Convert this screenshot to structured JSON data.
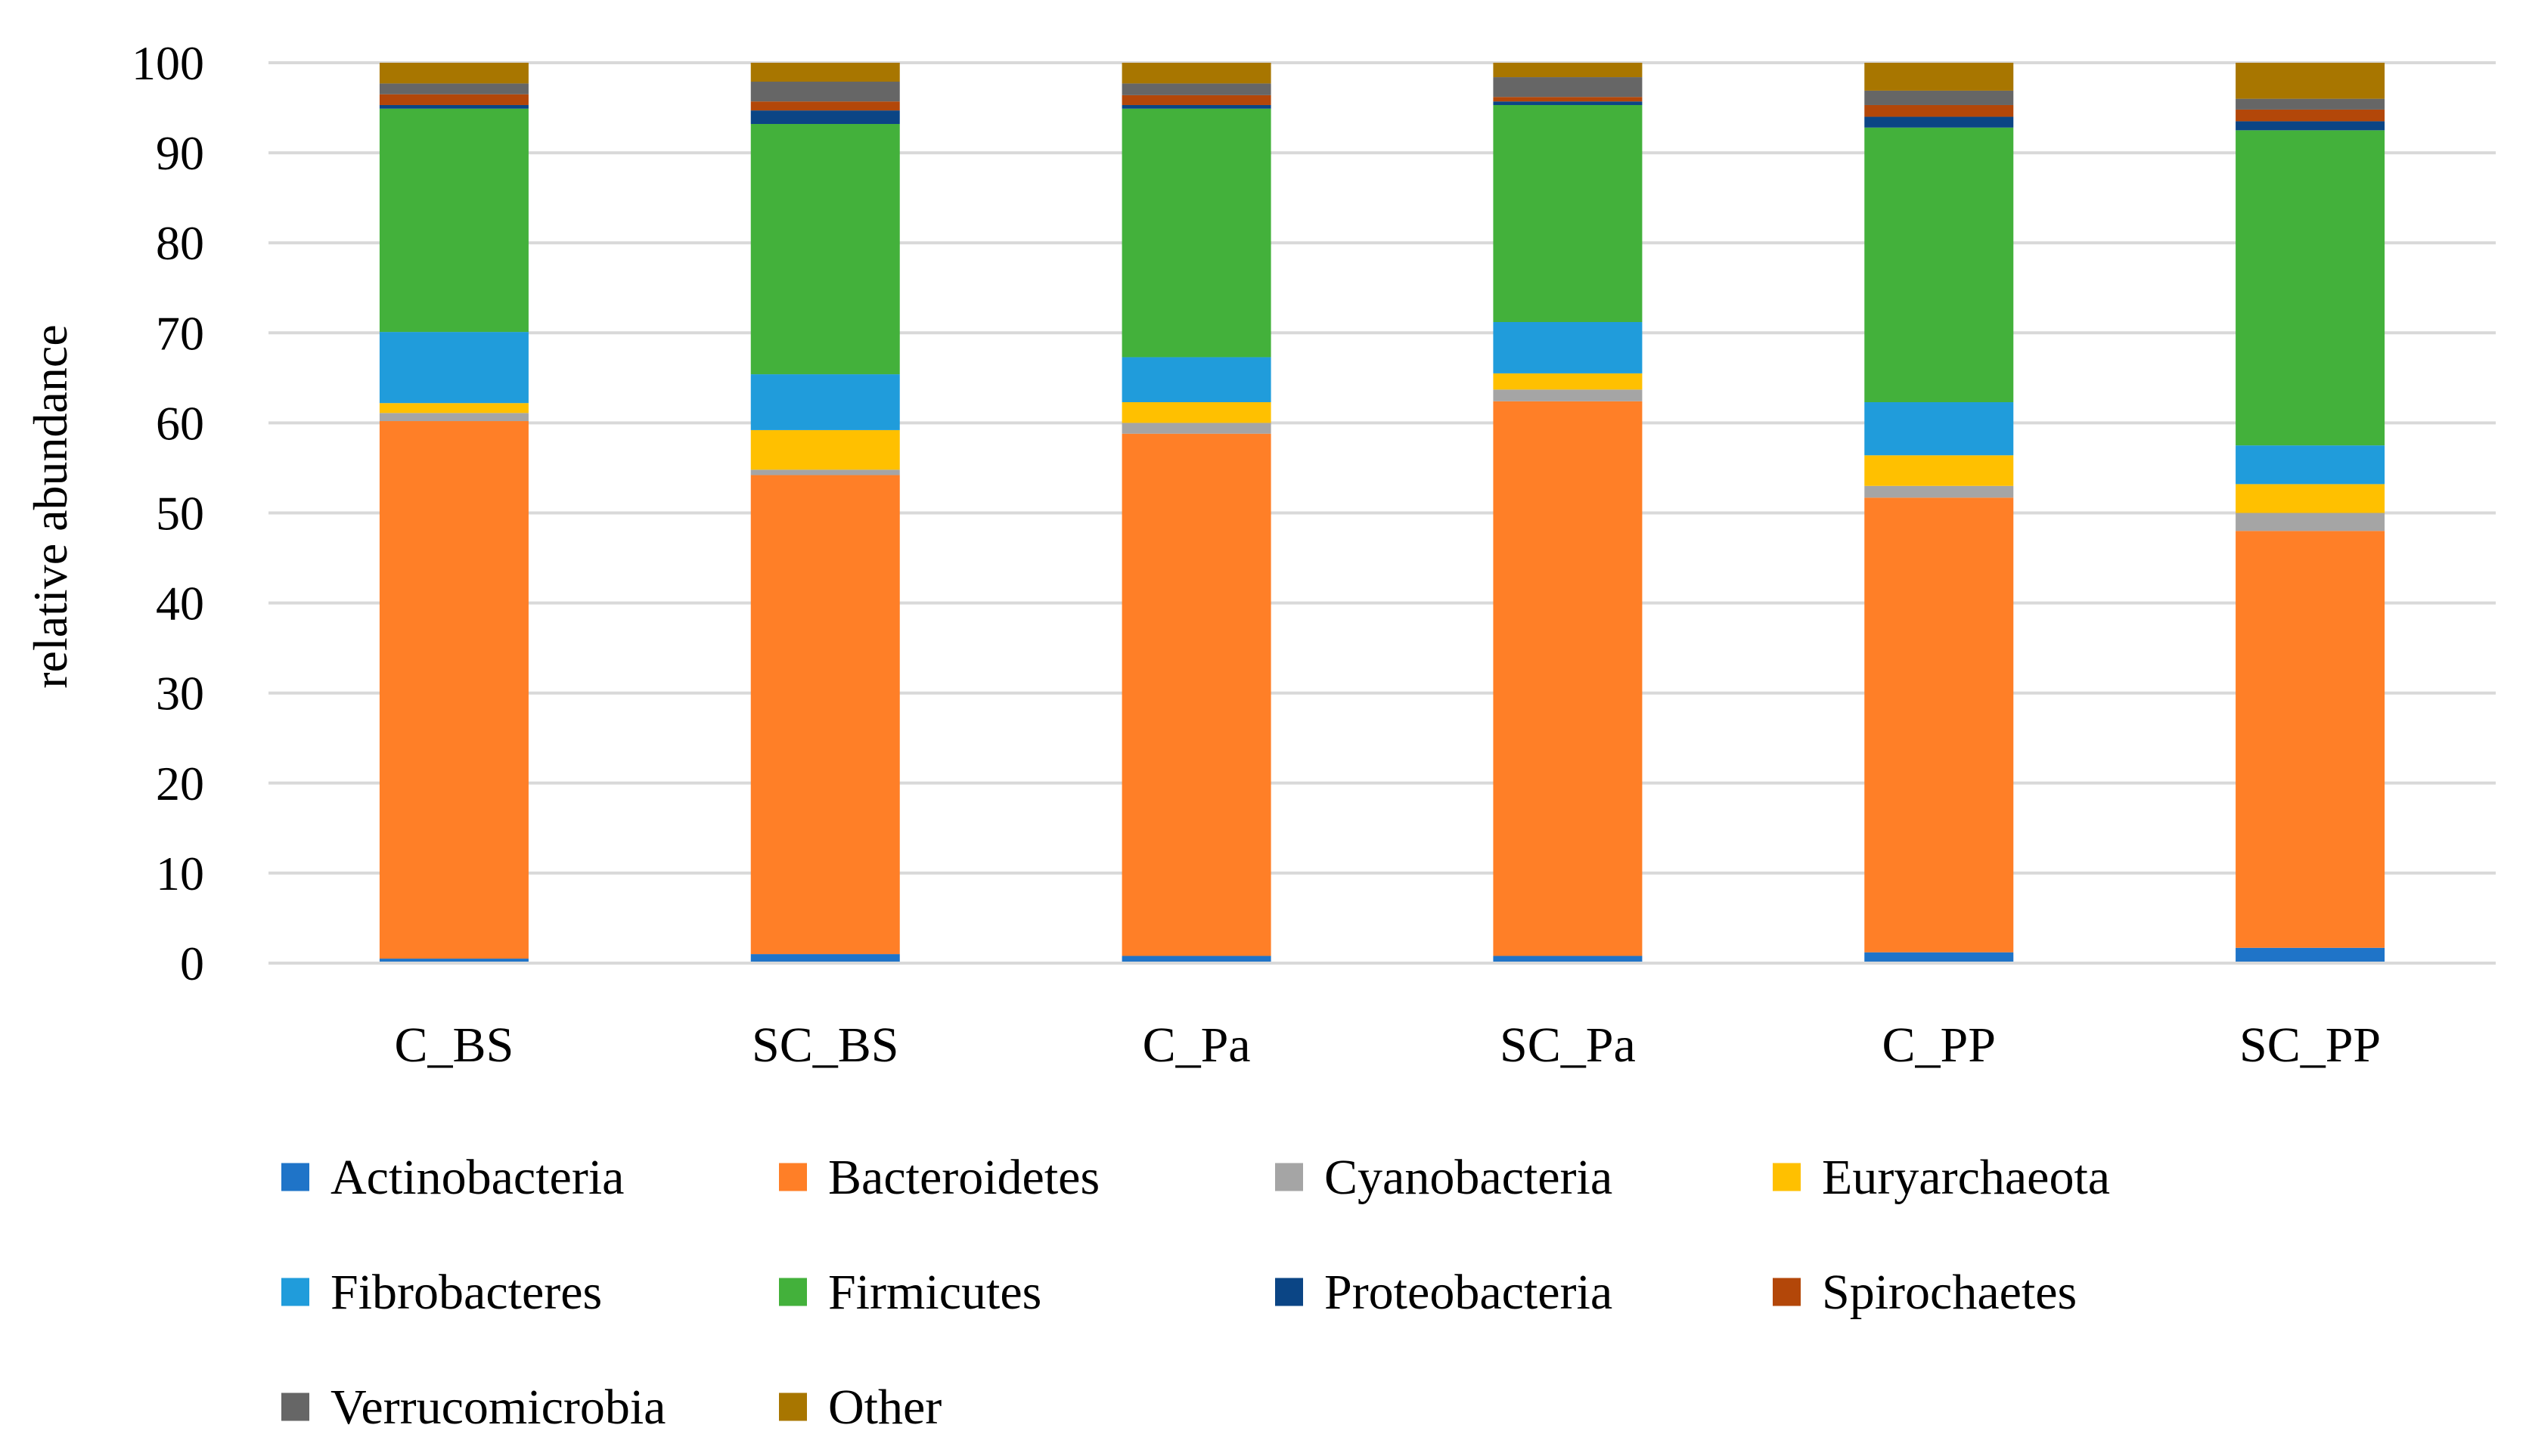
{
  "chart_data": {
    "type": "bar",
    "stacked": true,
    "title": "",
    "xlabel": "",
    "ylabel": "relative abundance",
    "ylim": [
      0,
      100
    ],
    "yticks": [
      0,
      10,
      20,
      30,
      40,
      50,
      60,
      70,
      80,
      90,
      100
    ],
    "grid": true,
    "legend_position": "bottom",
    "categories": [
      "C_BS",
      "SC_BS",
      "C_Pa",
      "SC_Pa",
      "C_PP",
      "SC_PP"
    ],
    "series": [
      {
        "name": "Actinobacteria",
        "color": "#1F74C8",
        "values": [
          0.5,
          1.0,
          0.8,
          0.8,
          1.2,
          1.7
        ]
      },
      {
        "name": "Bacteroidetes",
        "color": "#FF7F27",
        "values": [
          59.7,
          53.2,
          58.0,
          61.6,
          50.5,
          46.3
        ]
      },
      {
        "name": "Cyanobacteria",
        "color": "#A5A5A5",
        "values": [
          0.9,
          0.6,
          1.2,
          1.3,
          1.3,
          2.0
        ]
      },
      {
        "name": "Euryarchaeota",
        "color": "#FFC000",
        "values": [
          1.1,
          4.4,
          2.3,
          1.8,
          3.4,
          3.2
        ]
      },
      {
        "name": "Fibrobacteres",
        "color": "#209CDB",
        "values": [
          7.9,
          6.2,
          5.0,
          5.7,
          5.9,
          4.3
        ]
      },
      {
        "name": "Firmicutes",
        "color": "#43B13B",
        "values": [
          24.8,
          27.8,
          27.6,
          24.1,
          30.5,
          35.0
        ]
      },
      {
        "name": "Proteobacteria",
        "color": "#0B4585",
        "values": [
          0.4,
          1.5,
          0.4,
          0.4,
          1.2,
          1.0
        ]
      },
      {
        "name": "Spirochaetes",
        "color": "#B34709",
        "values": [
          1.2,
          1.0,
          1.1,
          0.5,
          1.3,
          1.3
        ]
      },
      {
        "name": "Verrucomicrobia",
        "color": "#666666",
        "values": [
          1.2,
          2.2,
          1.3,
          2.2,
          1.6,
          1.2
        ]
      },
      {
        "name": "Other",
        "color": "#A87600",
        "values": [
          2.3,
          2.1,
          2.3,
          1.6,
          3.1,
          4.0
        ]
      }
    ]
  }
}
